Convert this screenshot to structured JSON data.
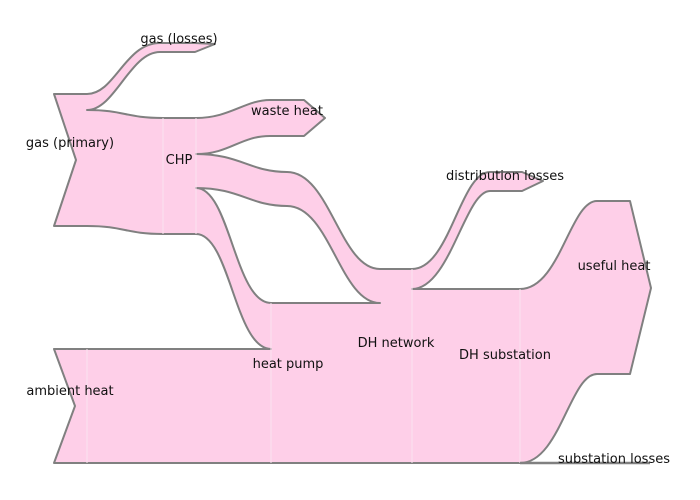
{
  "diagram": {
    "type": "sankey",
    "flow_color": "#fecfe8",
    "edge_color": "#808080",
    "labels": {
      "gas_losses": "gas (losses)",
      "waste_heat": "waste heat",
      "gas_primary": "gas (primary)",
      "chp": "CHP",
      "distribution_losses": "distribution losses",
      "useful_heat": "useful heat",
      "dh_network": "DH network",
      "dh_substation": "DH substation",
      "heat_pump": "heat pump",
      "ambient_heat": "ambient heat",
      "substation_losses": "substation losses"
    }
  }
}
